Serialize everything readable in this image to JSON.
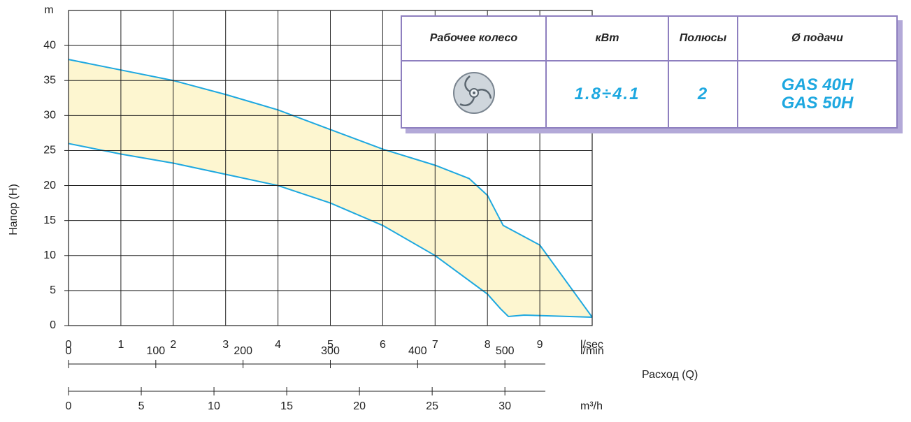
{
  "chart_data": {
    "type": "band",
    "ylabel": "Напор (H)",
    "yunit": "m",
    "xunit": "l/sec",
    "x2unit": "l/min",
    "x3unit": "m³/h",
    "xlabel": "Расход (Q)",
    "xlim": [
      0,
      10
    ],
    "xticks": [
      0,
      1,
      2,
      3,
      4,
      5,
      6,
      7,
      8,
      9
    ],
    "x2lim": [
      0,
      600
    ],
    "x2ticks": [
      0,
      100,
      200,
      300,
      400,
      500
    ],
    "x3lim": [
      0,
      36
    ],
    "x3ticks": [
      0,
      5,
      10,
      15,
      20,
      25,
      30
    ],
    "ylim": [
      0,
      45
    ],
    "yticks": [
      0,
      5,
      10,
      15,
      20,
      25,
      30,
      35,
      40
    ],
    "grid": true,
    "color": "#1ea8e0",
    "fill": "#fdf6d0",
    "upper": {
      "x": [
        0,
        1,
        2,
        3,
        4,
        5,
        6,
        7,
        7.65,
        8,
        8.3,
        9,
        10
      ],
      "values": [
        38,
        36.5,
        35,
        33,
        30.8,
        28,
        25.2,
        22.9,
        21,
        18.6,
        14.3,
        11.5,
        1.2
      ]
    },
    "lower": {
      "x": [
        0,
        1,
        2,
        3,
        4,
        5,
        6,
        7,
        8,
        8.25,
        8.4,
        8.7,
        10
      ],
      "values": [
        26,
        24.5,
        23.2,
        21.6,
        20,
        17.5,
        14.3,
        10,
        4.5,
        2.4,
        1.3,
        1.5,
        1.2
      ]
    }
  },
  "table": {
    "headers": [
      "Рабочее колесо",
      "кВт",
      "Полюсы",
      "Ø подачи"
    ],
    "row": {
      "power": "1.8÷4.1",
      "poles": "2",
      "outlets": [
        "GAS 40H",
        "GAS 50H"
      ]
    }
  }
}
